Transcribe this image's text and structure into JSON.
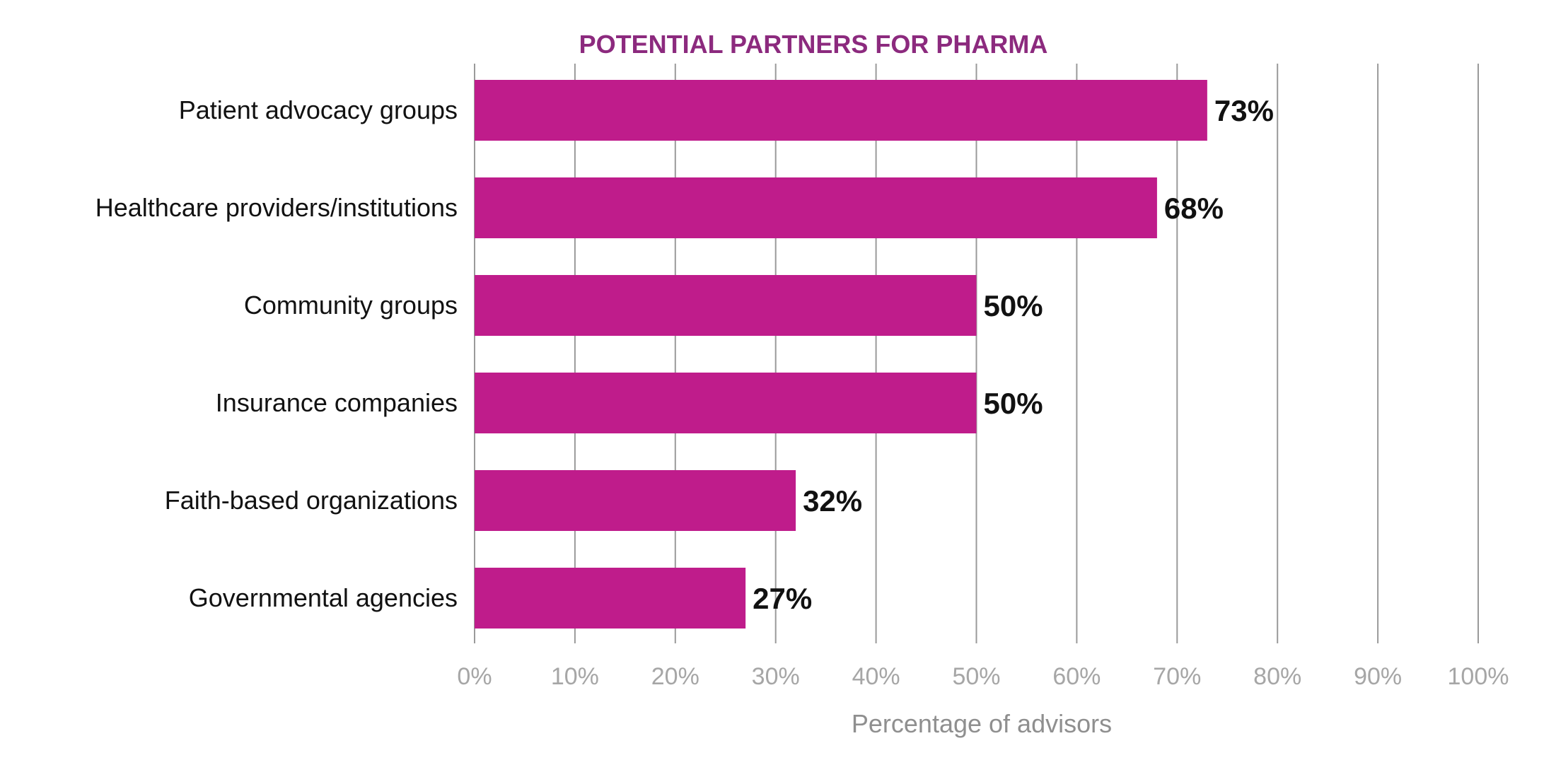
{
  "chart_data": {
    "type": "bar",
    "orientation": "horizontal",
    "title": "POTENTIAL PARTNERS FOR PHARMA",
    "xlabel": "Percentage of advisors",
    "ylabel": "",
    "categories": [
      "Patient advocacy groups",
      "Healthcare providers/institutions",
      "Community groups",
      "Insurance companies",
      "Faith-based organizations",
      "Governmental agencies"
    ],
    "values": [
      73,
      68,
      50,
      50,
      32,
      27
    ],
    "data_labels": [
      "73%",
      "68%",
      "50%",
      "50%",
      "32%",
      "27%"
    ],
    "xlim": [
      0,
      100
    ],
    "x_ticks": [
      0,
      10,
      20,
      30,
      40,
      50,
      60,
      70,
      80,
      90,
      100
    ],
    "x_tick_labels": [
      "0%",
      "10%",
      "20%",
      "30%",
      "40%",
      "50%",
      "60%",
      "70%",
      "80%",
      "90%",
      "100%"
    ],
    "grid": "vertical",
    "legend": "none",
    "colors": {
      "bar": "#BF1C8B",
      "title": "#8C2A7E",
      "grid": "#9A9A9A",
      "tick_label": "#A6A6A6",
      "axis_title": "#8F8F8F"
    }
  }
}
